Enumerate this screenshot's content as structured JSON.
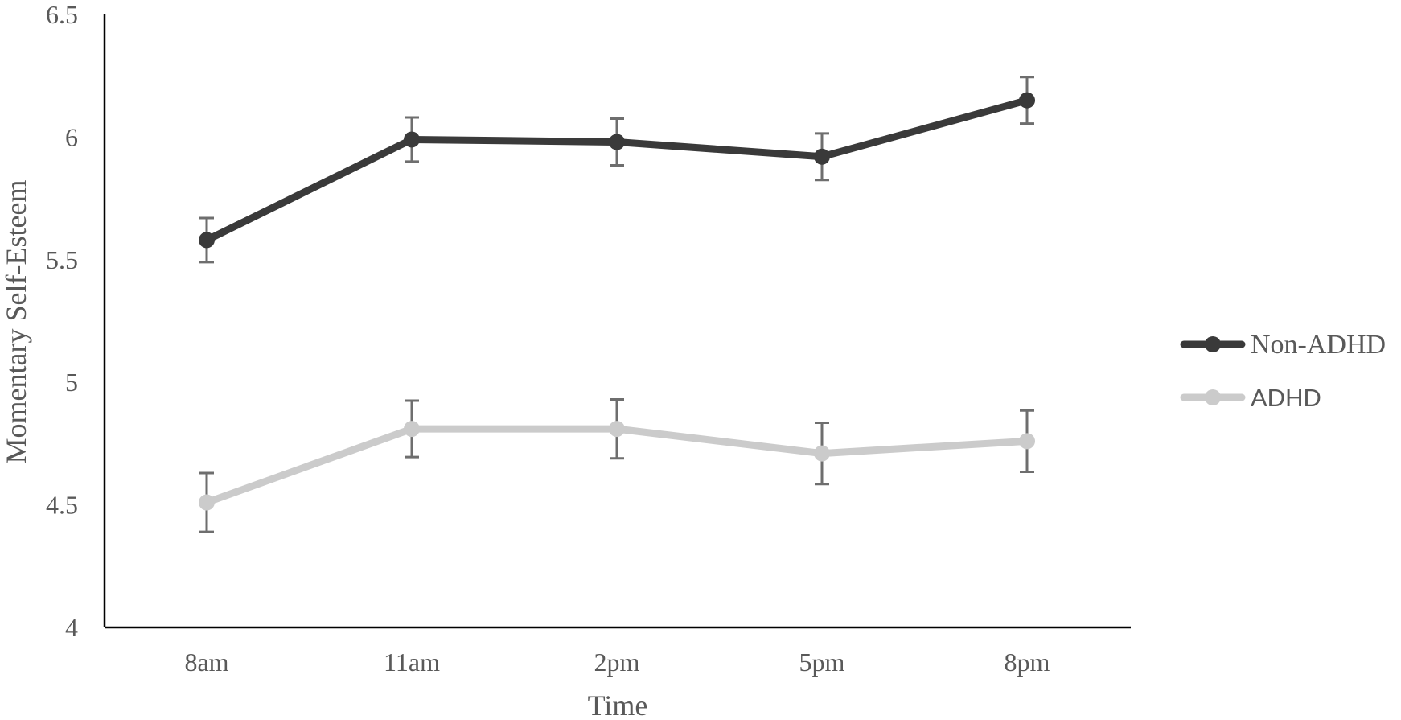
{
  "chart_data": {
    "type": "line",
    "categories": [
      "8am",
      "11am",
      "2pm",
      "5pm",
      "8pm"
    ],
    "xlabel": "Time",
    "ylabel": "Momentary Self-Esteem",
    "ylim": [
      4,
      6.5
    ],
    "yticks": [
      "4",
      "4.5",
      "5",
      "5.5",
      "6",
      "6.5"
    ],
    "grid": false,
    "legend_position": "right",
    "series": [
      {
        "name": "Non-ADHD",
        "color": "#3a3a3a",
        "values": [
          5.58,
          5.99,
          5.98,
          5.92,
          6.15
        ],
        "error": [
          0.09,
          0.09,
          0.095,
          0.095,
          0.095
        ]
      },
      {
        "name": "ADHD",
        "color": "#cbcbcb",
        "values": [
          4.51,
          4.81,
          4.81,
          4.71,
          4.76
        ],
        "error": [
          0.12,
          0.115,
          0.12,
          0.125,
          0.125
        ]
      }
    ],
    "error_bar_color": "#6e6e6e"
  }
}
